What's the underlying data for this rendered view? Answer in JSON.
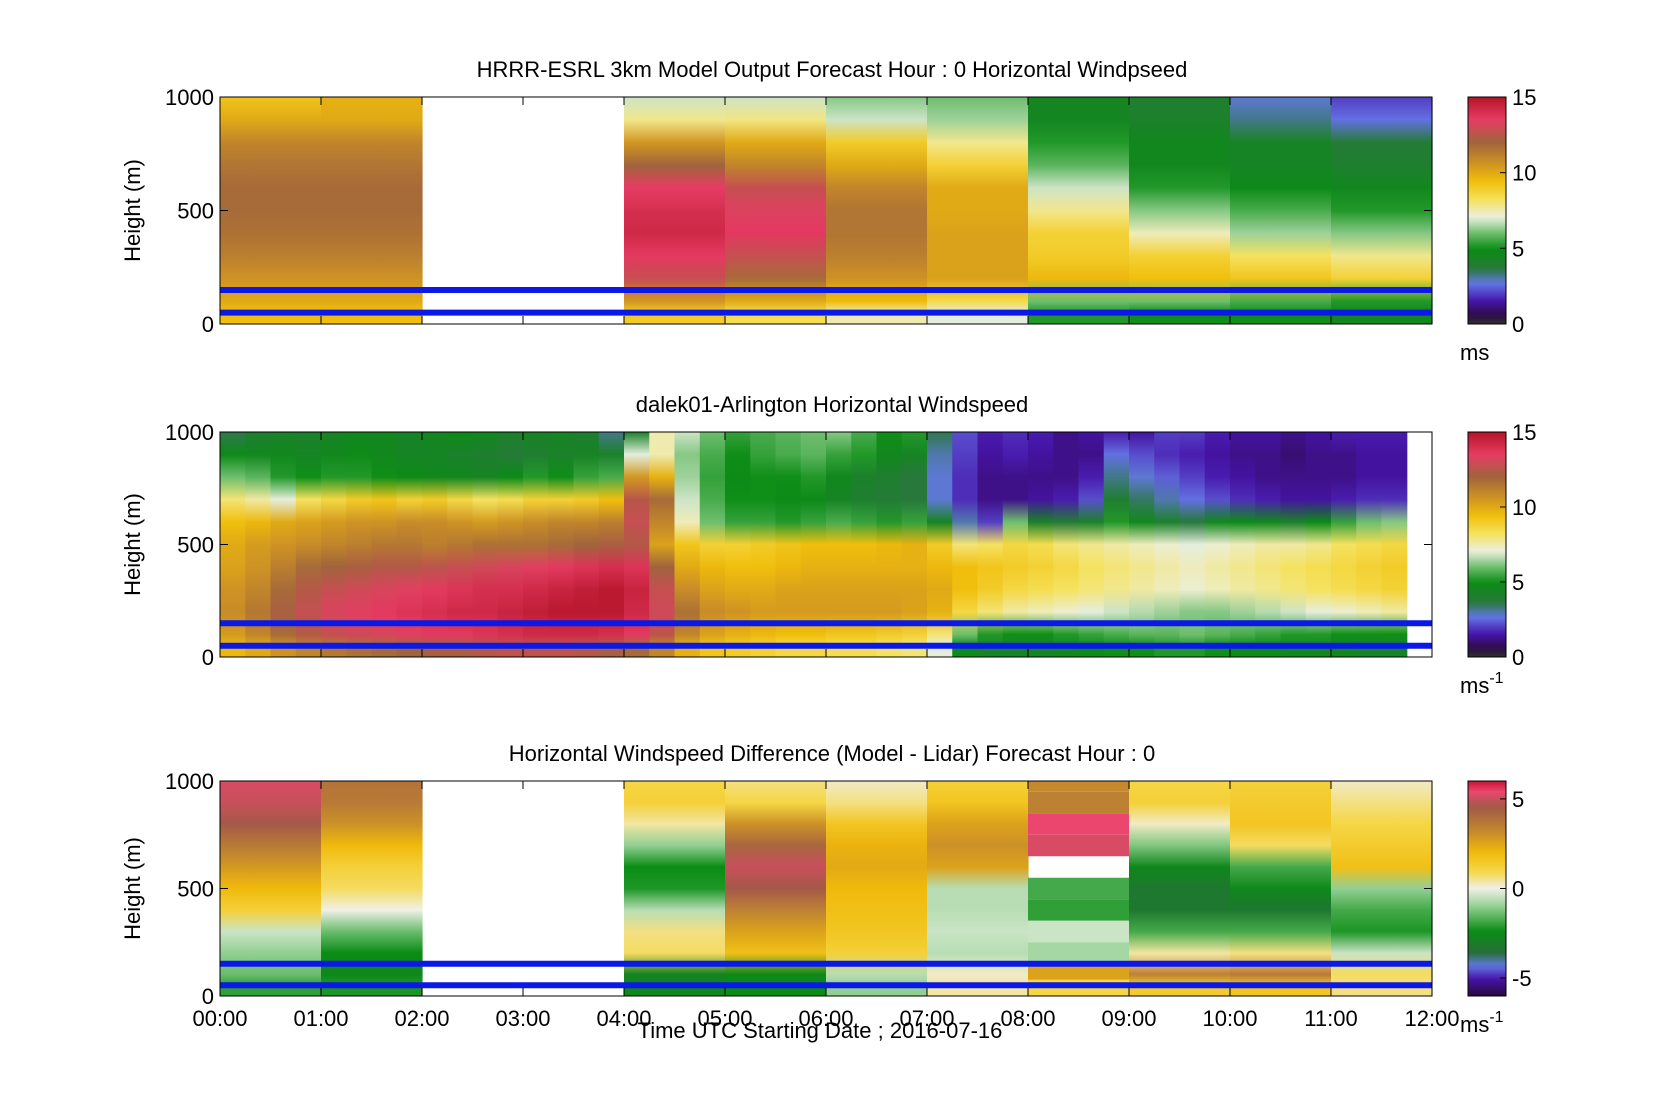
{
  "figure": {
    "xlabel": "Time UTC  Starting Date ; 2016-07-16",
    "x_tick_labels": [
      "00:00",
      "01:00",
      "02:00",
      "03:00",
      "04:00",
      "05:00",
      "06:00",
      "07:00",
      "08:00",
      "09:00",
      "10:00",
      "11:00",
      "12:00"
    ]
  },
  "chart_data": [
    {
      "type": "heatmap",
      "title": "HRRR-ESRL 3km Model Output   Forecast Hour : 0 Horizontal Windpseed",
      "xlabel": "",
      "ylabel": "Height (m)",
      "xlim": [
        0,
        12
      ],
      "ylim": [
        0,
        1000
      ],
      "y_ticks": [
        "0",
        "500",
        "1000"
      ],
      "colorbar": {
        "ticks": [
          "0",
          "5",
          "10",
          "15"
        ],
        "range": [
          0,
          15
        ],
        "unit": "ms",
        "unit_superscript": "",
        "colormap": "wind"
      },
      "columns_x_start_hours": [
        0,
        1,
        2,
        3,
        4,
        5,
        6,
        7,
        8,
        9,
        10,
        11
      ],
      "column_width_hours": 1,
      "height_levels_m": [
        1000,
        900,
        800,
        700,
        600,
        500,
        400,
        300,
        200,
        100,
        50
      ],
      "values_ms": [
        [
          9.2,
          9.8,
          null,
          null,
          6.8,
          6.8,
          6.2,
          6.0,
          4.5,
          4.0,
          2.8,
          2.0
        ],
        [
          10.0,
          10.0,
          null,
          null,
          7.8,
          7.9,
          6.8,
          6.4,
          4.5,
          4.2,
          3.2,
          2.6
        ],
        [
          11.0,
          11.0,
          null,
          null,
          10.5,
          10.0,
          9.0,
          7.8,
          5.2,
          4.6,
          4.4,
          3.8
        ],
        [
          11.5,
          11.5,
          null,
          null,
          12.0,
          11.0,
          10.0,
          8.8,
          5.8,
          4.6,
          4.4,
          4.0
        ],
        [
          11.8,
          11.8,
          null,
          null,
          13.5,
          12.8,
          11.0,
          10.0,
          6.8,
          5.2,
          4.8,
          4.6
        ],
        [
          11.8,
          11.8,
          null,
          null,
          14.0,
          13.3,
          11.5,
          10.0,
          7.8,
          6.2,
          5.6,
          5.2
        ],
        [
          11.6,
          11.6,
          null,
          null,
          14.2,
          13.6,
          11.5,
          10.2,
          8.8,
          7.4,
          6.4,
          6.2
        ],
        [
          11.2,
          11.2,
          null,
          null,
          13.6,
          12.8,
          11.2,
          10.2,
          9.0,
          8.8,
          8.2,
          7.8
        ],
        [
          10.6,
          10.6,
          null,
          null,
          12.8,
          11.8,
          10.6,
          10.2,
          9.6,
          9.4,
          9.2,
          8.8
        ],
        [
          10.0,
          10.0,
          null,
          null,
          10.5,
          10.0,
          9.5,
          8.5,
          6.0,
          6.0,
          5.6,
          5.2
        ],
        [
          9.4,
          9.4,
          null,
          null,
          9.0,
          8.4,
          7.5,
          7.0,
          5.2,
          5.0,
          5.0,
          4.6
        ]
      ],
      "reference_lines_m": [
        150,
        50
      ],
      "reference_line_color": "#0a19e6"
    },
    {
      "type": "heatmap",
      "title": "dalek01-Arlington  Horizontal Windspeed",
      "xlabel": "",
      "ylabel": "Height (m)",
      "xlim": [
        0,
        12
      ],
      "ylim": [
        0,
        1000
      ],
      "y_ticks": [
        "0",
        "500",
        "1000"
      ],
      "colorbar": {
        "ticks": [
          "0",
          "5",
          "10",
          "15"
        ],
        "range": [
          0,
          15
        ],
        "unit": "ms",
        "unit_superscript": "-1",
        "colormap": "wind"
      },
      "profile_interval_minutes": 15,
      "data_end_hours": 11.75,
      "height_levels_m": [
        1000,
        900,
        800,
        700,
        600,
        500,
        400,
        300,
        200,
        100,
        50
      ],
      "profiles_ms": [
        [
          3.5,
          4.0,
          4.2,
          4.2,
          4.4,
          4.6,
          4.6,
          4.4,
          4.6,
          4.8,
          4.6,
          4.2,
          4.4,
          4.4,
          4.0,
          3.2,
          4.2,
          7.5,
          6.8,
          6.0,
          5.4,
          5.6,
          5.8,
          6.0,
          6.2,
          5.6,
          5.0,
          5.2,
          3.5,
          2.2,
          1.6,
          1.8,
          1.6,
          1.2,
          1.4,
          1.6,
          1.4,
          2.0,
          2.0,
          1.6,
          1.4,
          1.4,
          1.2,
          1.4,
          1.6,
          1.6,
          1.6
        ],
        [
          4.8,
          4.6,
          4.6,
          4.4,
          4.6,
          4.8,
          4.6,
          4.4,
          4.4,
          4.2,
          4.0,
          3.8,
          4.0,
          4.2,
          4.4,
          4.2,
          7.0,
          7.5,
          6.2,
          5.6,
          5.0,
          5.4,
          5.6,
          5.8,
          5.4,
          5.2,
          4.6,
          4.4,
          3.0,
          2.0,
          1.4,
          1.6,
          1.4,
          1.2,
          1.2,
          2.6,
          2.2,
          1.8,
          1.6,
          1.4,
          1.2,
          1.2,
          1.0,
          1.2,
          1.2,
          1.4,
          1.4
        ],
        [
          6.0,
          5.8,
          5.2,
          5.0,
          5.2,
          5.2,
          5.0,
          4.8,
          4.6,
          4.6,
          4.4,
          4.8,
          5.2,
          5.0,
          5.4,
          5.6,
          10.5,
          9.8,
          6.4,
          5.4,
          4.8,
          5.0,
          5.0,
          5.2,
          4.6,
          4.2,
          4.0,
          3.6,
          2.8,
          1.8,
          1.2,
          1.2,
          1.2,
          1.2,
          1.6,
          3.2,
          2.8,
          2.4,
          2.0,
          1.6,
          1.4,
          1.2,
          1.2,
          1.2,
          1.2,
          1.4,
          1.4
        ],
        [
          8.0,
          7.6,
          7.0,
          8.2,
          8.6,
          9.0,
          9.2,
          8.8,
          9.0,
          8.6,
          8.2,
          8.4,
          8.8,
          8.8,
          9.0,
          9.4,
          12.5,
          11.8,
          6.8,
          5.6,
          5.0,
          5.0,
          4.8,
          4.8,
          4.4,
          4.0,
          3.8,
          3.6,
          2.8,
          1.8,
          1.2,
          1.2,
          1.4,
          1.6,
          2.2,
          4.0,
          3.4,
          3.0,
          2.6,
          2.2,
          1.8,
          1.6,
          1.4,
          1.4,
          1.6,
          1.8,
          1.8
        ],
        [
          9.4,
          9.6,
          10.0,
          10.2,
          10.4,
          10.6,
          10.6,
          10.8,
          10.8,
          10.6,
          10.4,
          10.6,
          10.8,
          11.0,
          11.0,
          11.2,
          12.8,
          11.0,
          7.4,
          6.0,
          5.4,
          5.4,
          5.2,
          5.4,
          5.6,
          5.4,
          5.2,
          5.4,
          4.4,
          3.0,
          2.0,
          6.0,
          4.2,
          3.8,
          4.2,
          5.2,
          4.6,
          4.2,
          3.6,
          4.6,
          4.8,
          4.6,
          4.2,
          4.8,
          5.4,
          6.0,
          6.2
        ],
        [
          10.0,
          10.4,
          10.6,
          10.8,
          11.0,
          11.2,
          11.4,
          11.4,
          11.2,
          11.4,
          11.6,
          11.6,
          11.6,
          11.8,
          12.0,
          12.2,
          12.4,
          10.2,
          9.2,
          8.8,
          8.8,
          9.0,
          9.2,
          9.4,
          9.4,
          9.4,
          9.6,
          9.8,
          9.0,
          8.0,
          8.2,
          8.6,
          8.4,
          8.0,
          7.8,
          7.6,
          7.4,
          7.2,
          7.0,
          7.2,
          7.4,
          7.6,
          7.6,
          7.8,
          8.2,
          8.4,
          8.6
        ],
        [
          10.2,
          10.6,
          11.2,
          11.8,
          12.0,
          12.2,
          12.4,
          12.4,
          12.6,
          12.8,
          13.0,
          13.2,
          13.4,
          13.6,
          13.8,
          14.0,
          13.8,
          12.0,
          10.0,
          9.6,
          9.4,
          9.4,
          9.6,
          9.8,
          9.8,
          9.8,
          9.8,
          9.8,
          9.6,
          9.4,
          9.2,
          9.0,
          8.8,
          8.6,
          8.2,
          8.0,
          7.8,
          7.6,
          7.4,
          7.6,
          7.8,
          8.0,
          8.2,
          8.4,
          8.6,
          8.8,
          9.0
        ],
        [
          10.6,
          11.0,
          11.8,
          12.4,
          12.8,
          13.0,
          13.2,
          13.4,
          13.6,
          13.8,
          14.0,
          14.0,
          14.2,
          14.4,
          14.6,
          14.8,
          14.4,
          12.8,
          10.8,
          10.2,
          10.0,
          10.0,
          10.2,
          10.2,
          10.2,
          10.2,
          10.2,
          10.2,
          10.0,
          9.4,
          9.0,
          8.6,
          8.4,
          8.2,
          8.0,
          7.8,
          7.6,
          7.4,
          7.2,
          7.4,
          7.6,
          7.8,
          8.0,
          8.2,
          8.4,
          8.6,
          8.8
        ],
        [
          10.8,
          11.4,
          12.2,
          12.8,
          13.2,
          13.4,
          13.6,
          13.8,
          14.0,
          14.2,
          14.2,
          14.4,
          14.6,
          14.8,
          14.8,
          14.8,
          14.2,
          13.0,
          11.6,
          10.8,
          10.6,
          10.4,
          10.4,
          10.4,
          10.4,
          10.4,
          10.4,
          10.2,
          9.8,
          8.6,
          8.0,
          7.6,
          7.4,
          7.2,
          7.0,
          6.8,
          6.6,
          6.4,
          6.2,
          6.2,
          6.4,
          6.6,
          6.8,
          7.0,
          7.2,
          7.4,
          7.6
        ],
        [
          10.4,
          11.0,
          11.8,
          12.4,
          12.8,
          13.0,
          13.2,
          13.4,
          13.6,
          13.6,
          13.8,
          14.0,
          14.2,
          14.2,
          14.2,
          14.0,
          13.6,
          12.6,
          11.0,
          10.2,
          9.8,
          9.6,
          9.4,
          9.4,
          9.2,
          9.2,
          9.0,
          8.8,
          8.0,
          6.0,
          5.2,
          5.0,
          5.0,
          5.2,
          5.4,
          5.6,
          5.8,
          5.8,
          6.0,
          5.8,
          5.6,
          5.4,
          5.2,
          5.2,
          5.0,
          5.0,
          5.0
        ],
        [
          9.6,
          10.0,
          10.6,
          11.0,
          11.4,
          11.6,
          11.8,
          12.0,
          12.2,
          12.2,
          12.4,
          12.6,
          12.6,
          12.6,
          12.4,
          12.2,
          11.8,
          11.0,
          9.8,
          9.2,
          9.0,
          8.8,
          8.6,
          8.6,
          8.4,
          8.4,
          8.2,
          8.0,
          7.0,
          4.8,
          4.4,
          4.4,
          4.4,
          4.6,
          4.8,
          5.0,
          5.0,
          5.2,
          5.2,
          5.0,
          4.8,
          4.8,
          4.6,
          4.6,
          4.6,
          4.4,
          4.4
        ]
      ],
      "reference_lines_m": [
        150,
        50
      ],
      "reference_line_color": "#0a19e6"
    },
    {
      "type": "heatmap",
      "title": "Horizontal Windspeed Difference (Model - Lidar) Forecast Hour : 0",
      "xlabel": "Time UTC  Starting Date ; 2016-07-16",
      "ylabel": "Height (m)",
      "xlim": [
        0,
        12
      ],
      "ylim": [
        0,
        1000
      ],
      "y_ticks": [
        "0",
        "500",
        "1000"
      ],
      "colorbar": {
        "ticks": [
          "-5",
          "0",
          "5"
        ],
        "range": [
          -6,
          6
        ],
        "unit": "ms",
        "unit_superscript": "-1",
        "colormap": "diff"
      },
      "columns_x_start_hours": [
        0,
        1,
        2,
        3,
        4,
        5,
        6,
        7,
        8,
        9,
        10,
        11
      ],
      "column_width_hours": 1,
      "height_levels_m": [
        1000,
        900,
        800,
        700,
        600,
        500,
        400,
        300,
        200,
        100,
        50
      ],
      "values_ms": [
        [
          5.2,
          3.8,
          null,
          null,
          1.0,
          0.6,
          0.2,
          1.2,
          3.2,
          1.0,
          1.2,
          0.2
        ],
        [
          5.0,
          3.6,
          null,
          null,
          1.2,
          1.0,
          0.6,
          1.6,
          3.4,
          1.2,
          1.4,
          0.6
        ],
        [
          4.6,
          3.0,
          null,
          null,
          0.4,
          3.0,
          1.6,
          2.6,
          5.4,
          0.2,
          1.6,
          1.0
        ],
        [
          3.6,
          2.0,
          null,
          null,
          -1.0,
          4.2,
          2.2,
          3.0,
          5.2,
          -1.2,
          0.8,
          1.4
        ],
        [
          2.8,
          1.2,
          null,
          null,
          -2.4,
          5.0,
          2.4,
          2.6,
          null,
          -2.6,
          -1.8,
          1.8
        ],
        [
          2.0,
          0.8,
          null,
          null,
          -2.2,
          4.6,
          2.0,
          -0.6,
          -1.8,
          -3.2,
          -2.6,
          -1.0
        ],
        [
          1.2,
          0.0,
          null,
          null,
          -0.6,
          3.4,
          1.8,
          -0.6,
          -2.0,
          -3.2,
          -3.2,
          -1.8
        ],
        [
          -0.4,
          -1.4,
          null,
          null,
          0.6,
          2.6,
          1.6,
          -0.4,
          -0.4,
          -1.8,
          -1.8,
          -2.2
        ],
        [
          -1.0,
          -2.4,
          null,
          null,
          0.8,
          1.8,
          1.2,
          -0.6,
          -0.8,
          0.4,
          0.6,
          -0.4
        ],
        [
          -1.4,
          -2.6,
          null,
          null,
          -2.8,
          -2.6,
          -0.6,
          0.2,
          2.6,
          3.4,
          3.6,
          0.8
        ],
        [
          -2.0,
          -2.2,
          null,
          null,
          -2.6,
          -2.4,
          -1.0,
          0.4,
          1.0,
          1.4,
          1.6,
          0.6
        ]
      ],
      "reference_lines_m": [
        150,
        50
      ],
      "reference_line_color": "#0a19e6"
    }
  ]
}
